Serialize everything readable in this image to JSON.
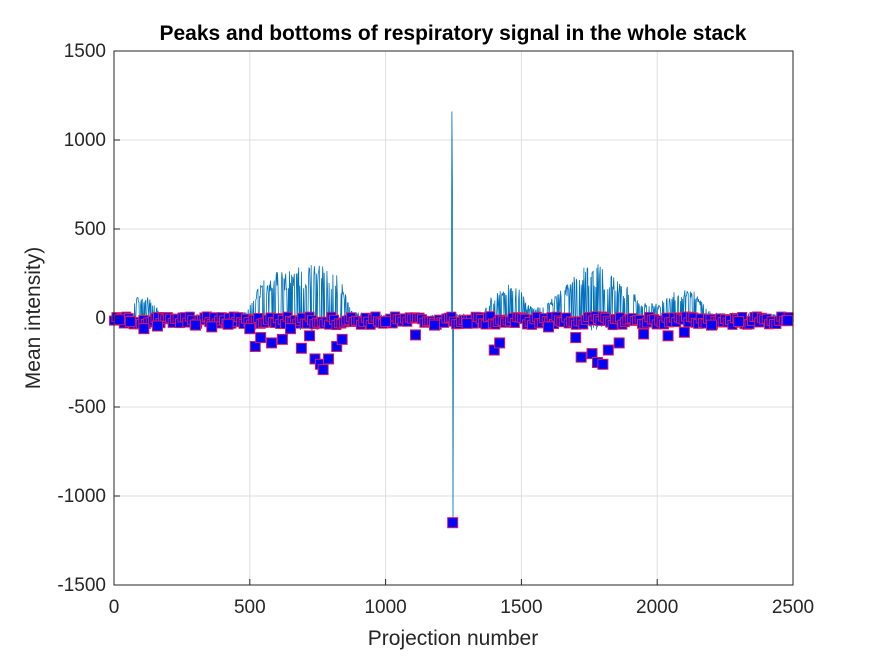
{
  "chart_data": {
    "type": "line",
    "title": "Peaks and bottoms of respiratory signal in the whole stack",
    "xlabel": "Projection number",
    "ylabel": "Mean intensity)",
    "xlim": [
      0,
      2500
    ],
    "ylim": [
      -1500,
      1500
    ],
    "xticks": [
      "0",
      "500",
      "1000",
      "1500",
      "2000",
      "2500"
    ],
    "yticks": [
      "1500",
      "1000",
      "500",
      "0",
      "-500",
      "-1000",
      "-1500"
    ],
    "grid": true,
    "colors": {
      "signal": "#0072BD",
      "marker_fill": "#0000FF",
      "marker_edge": "#E0185A",
      "axis": "#262626",
      "grid": "#DFDFDF"
    },
    "series": [
      {
        "type": "line",
        "envelope": [
          [
            0,
            20
          ],
          [
            60,
            30
          ],
          [
            80,
            120
          ],
          [
            100,
            130
          ],
          [
            120,
            125
          ],
          [
            140,
            110
          ],
          [
            160,
            60
          ],
          [
            180,
            20
          ],
          [
            260,
            20
          ],
          [
            400,
            25
          ],
          [
            480,
            30
          ],
          [
            500,
            80
          ],
          [
            540,
            200
          ],
          [
            600,
            270
          ],
          [
            650,
            290
          ],
          [
            700,
            295
          ],
          [
            750,
            300
          ],
          [
            800,
            280
          ],
          [
            830,
            230
          ],
          [
            860,
            130
          ],
          [
            880,
            30
          ],
          [
            1000,
            15
          ],
          [
            1200,
            15
          ],
          [
            1244,
            1160
          ],
          [
            1250,
            20
          ],
          [
            1360,
            30
          ],
          [
            1380,
            120
          ],
          [
            1420,
            170
          ],
          [
            1460,
            200
          ],
          [
            1500,
            160
          ],
          [
            1520,
            80
          ],
          [
            1560,
            60
          ],
          [
            1620,
            120
          ],
          [
            1680,
            230
          ],
          [
            1740,
            300
          ],
          [
            1780,
            310
          ],
          [
            1820,
            260
          ],
          [
            1860,
            200
          ],
          [
            1900,
            170
          ],
          [
            1940,
            90
          ],
          [
            2000,
            80
          ],
          [
            2060,
            150
          ],
          [
            2100,
            160
          ],
          [
            2140,
            150
          ],
          [
            2170,
            80
          ],
          [
            2200,
            30
          ],
          [
            2490,
            20
          ]
        ]
      },
      {
        "type": "scatter",
        "marker": "square",
        "bottoms": [
          [
            20,
            -10
          ],
          [
            60,
            -20
          ],
          [
            110,
            -60
          ],
          [
            160,
            -45
          ],
          [
            300,
            -40
          ],
          [
            360,
            -50
          ],
          [
            420,
            -35
          ],
          [
            500,
            -60
          ],
          [
            520,
            -160
          ],
          [
            540,
            -110
          ],
          [
            580,
            -140
          ],
          [
            620,
            -120
          ],
          [
            650,
            -60
          ],
          [
            690,
            -170
          ],
          [
            720,
            -100
          ],
          [
            740,
            -230
          ],
          [
            760,
            -260
          ],
          [
            770,
            -290
          ],
          [
            790,
            -230
          ],
          [
            820,
            -160
          ],
          [
            840,
            -120
          ],
          [
            1000,
            -20
          ],
          [
            1110,
            -95
          ],
          [
            1180,
            -40
          ],
          [
            1247,
            -1150
          ],
          [
            1300,
            -30
          ],
          [
            1400,
            -180
          ],
          [
            1420,
            -140
          ],
          [
            1600,
            -50
          ],
          [
            1700,
            -110
          ],
          [
            1720,
            -220
          ],
          [
            1760,
            -200
          ],
          [
            1780,
            -250
          ],
          [
            1800,
            -260
          ],
          [
            1820,
            -180
          ],
          [
            1860,
            -140
          ],
          [
            1950,
            -90
          ],
          [
            2040,
            -100
          ],
          [
            2100,
            -80
          ],
          [
            2200,
            -40
          ],
          [
            2300,
            -20
          ],
          [
            2480,
            -15
          ]
        ],
        "near_zero_band": [
          -40,
          10
        ]
      }
    ]
  }
}
